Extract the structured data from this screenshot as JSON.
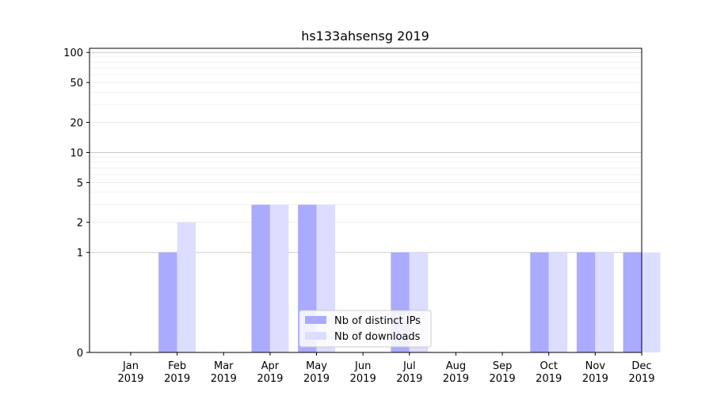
{
  "chart_data": {
    "type": "bar",
    "title": "hs133ahsensg 2019",
    "xlabel": "",
    "ylabel": "",
    "yscale": "symlog",
    "ylim": [
      0,
      110
    ],
    "yticks": [
      0,
      1,
      2,
      5,
      10,
      20,
      50,
      100
    ],
    "grid": true,
    "legend_position": "bottom-center",
    "categories": [
      "Jan\n2019",
      "Feb\n2019",
      "Mar\n2019",
      "Apr\n2019",
      "May\n2019",
      "Jun\n2019",
      "Jul\n2019",
      "Aug\n2019",
      "Sep\n2019",
      "Oct\n2019",
      "Nov\n2019",
      "Dec\n2019"
    ],
    "series": [
      {
        "name": "Nb of distinct IPs",
        "color": "#aaaaff",
        "values": [
          0,
          1,
          0,
          3,
          3,
          0,
          1,
          0,
          0,
          1,
          1,
          1
        ]
      },
      {
        "name": "Nb of downloads",
        "color": "#ddddff",
        "values": [
          0,
          2,
          0,
          3,
          3,
          0,
          1,
          0,
          0,
          1,
          1,
          1
        ]
      }
    ]
  }
}
